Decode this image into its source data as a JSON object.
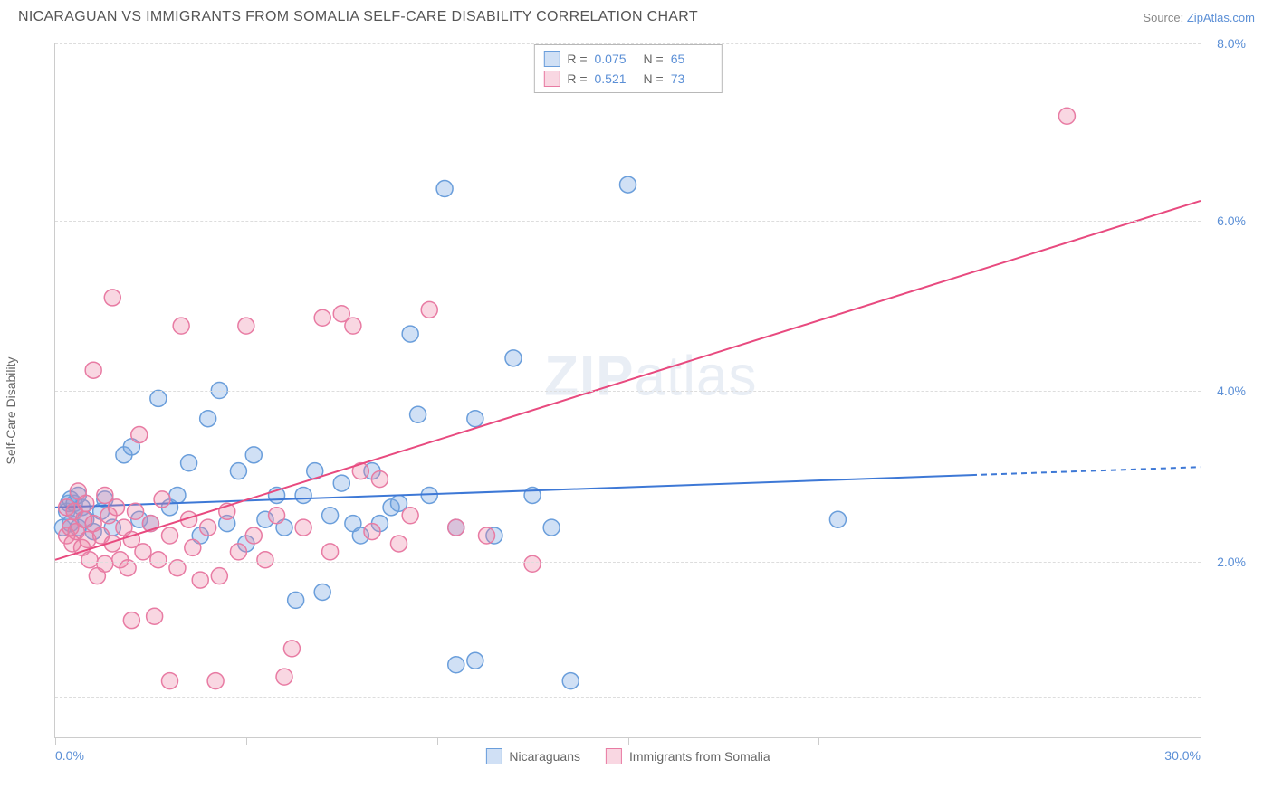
{
  "title": "NICARAGUAN VS IMMIGRANTS FROM SOMALIA SELF-CARE DISABILITY CORRELATION CHART",
  "source_label": "Source:",
  "source_link": "ZipAtlas.com",
  "y_axis_label": "Self-Care Disability",
  "watermark": "ZIPatlas",
  "chart": {
    "type": "scatter",
    "xlim": [
      0,
      30
    ],
    "ylim": [
      0,
      8.6
    ],
    "x_ticks": [
      0,
      5,
      10,
      15,
      20,
      25,
      30
    ],
    "x_tick_labels": {
      "0": "0.0%",
      "30": "30.0%"
    },
    "y_gridlines": [
      0.5,
      2.17,
      4.3,
      6.4,
      8.6
    ],
    "y_tick_labels": {
      "2.17": "2.0%",
      "4.3": "4.0%",
      "6.4": "6.0%",
      "8.6": "8.0%"
    },
    "background_color": "#ffffff",
    "grid_color": "#dddddd",
    "axis_color": "#cccccc",
    "tick_label_color": "#5b8fd6",
    "marker_radius": 9,
    "marker_stroke_width": 1.5,
    "line_width": 2,
    "series": [
      {
        "name": "Nicaraguans",
        "fill": "rgba(120,165,225,0.35)",
        "stroke": "#6a9edb",
        "line_color": "#3d78d6",
        "R": "0.075",
        "N": "65",
        "regression": {
          "x1": 0,
          "y1": 2.85,
          "x2": 24,
          "y2": 3.25,
          "dash_x2": 30,
          "dash_y2": 3.35
        },
        "points": [
          [
            0.2,
            2.6
          ],
          [
            0.3,
            2.8
          ],
          [
            0.35,
            2.9
          ],
          [
            0.4,
            2.65
          ],
          [
            0.4,
            2.95
          ],
          [
            0.5,
            2.8
          ],
          [
            0.5,
            2.9
          ],
          [
            0.6,
            2.6
          ],
          [
            0.6,
            3.0
          ],
          [
            0.7,
            2.85
          ],
          [
            0.8,
            2.7
          ],
          [
            1.0,
            2.55
          ],
          [
            1.2,
            2.8
          ],
          [
            1.3,
            2.95
          ],
          [
            1.5,
            2.6
          ],
          [
            1.8,
            3.5
          ],
          [
            2.0,
            3.6
          ],
          [
            2.2,
            2.7
          ],
          [
            2.5,
            2.65
          ],
          [
            2.7,
            4.2
          ],
          [
            3.0,
            2.85
          ],
          [
            3.2,
            3.0
          ],
          [
            3.5,
            3.4
          ],
          [
            3.8,
            2.5
          ],
          [
            4.0,
            3.95
          ],
          [
            4.3,
            4.3
          ],
          [
            4.5,
            2.65
          ],
          [
            4.8,
            3.3
          ],
          [
            5.0,
            2.4
          ],
          [
            5.2,
            3.5
          ],
          [
            5.5,
            2.7
          ],
          [
            5.8,
            3.0
          ],
          [
            6.0,
            2.6
          ],
          [
            6.3,
            1.7
          ],
          [
            6.5,
            3.0
          ],
          [
            6.8,
            3.3
          ],
          [
            7.0,
            1.8
          ],
          [
            7.2,
            2.75
          ],
          [
            7.5,
            3.15
          ],
          [
            7.8,
            2.65
          ],
          [
            8.0,
            2.5
          ],
          [
            8.3,
            3.3
          ],
          [
            8.5,
            2.65
          ],
          [
            8.8,
            2.85
          ],
          [
            9.0,
            2.9
          ],
          [
            9.3,
            5.0
          ],
          [
            9.5,
            4.0
          ],
          [
            9.8,
            3.0
          ],
          [
            10.2,
            6.8
          ],
          [
            10.5,
            2.6
          ],
          [
            10.5,
            0.9
          ],
          [
            11.0,
            3.95
          ],
          [
            11.0,
            0.95
          ],
          [
            11.5,
            2.5
          ],
          [
            12.0,
            4.7
          ],
          [
            12.5,
            3.0
          ],
          [
            13.0,
            2.6
          ],
          [
            13.5,
            0.7
          ],
          [
            15.0,
            6.85
          ],
          [
            20.5,
            2.7
          ]
        ]
      },
      {
        "name": "Immigrants from Somalia",
        "fill": "rgba(235,130,165,0.32)",
        "stroke": "#e87ba3",
        "line_color": "#e84a7f",
        "R": "0.521",
        "N": "73",
        "regression": {
          "x1": 0,
          "y1": 2.2,
          "x2": 30,
          "y2": 6.65
        },
        "points": [
          [
            0.3,
            2.5
          ],
          [
            0.3,
            2.85
          ],
          [
            0.4,
            2.6
          ],
          [
            0.45,
            2.4
          ],
          [
            0.5,
            2.8
          ],
          [
            0.55,
            2.55
          ],
          [
            0.6,
            3.05
          ],
          [
            0.7,
            2.35
          ],
          [
            0.75,
            2.7
          ],
          [
            0.8,
            2.9
          ],
          [
            0.85,
            2.45
          ],
          [
            0.9,
            2.2
          ],
          [
            1.0,
            2.65
          ],
          [
            1.0,
            4.55
          ],
          [
            1.1,
            2.0
          ],
          [
            1.2,
            2.5
          ],
          [
            1.3,
            3.0
          ],
          [
            1.3,
            2.15
          ],
          [
            1.4,
            2.75
          ],
          [
            1.5,
            2.4
          ],
          [
            1.5,
            5.45
          ],
          [
            1.6,
            2.85
          ],
          [
            1.7,
            2.2
          ],
          [
            1.8,
            2.6
          ],
          [
            1.9,
            2.1
          ],
          [
            2.0,
            2.45
          ],
          [
            2.0,
            1.45
          ],
          [
            2.1,
            2.8
          ],
          [
            2.2,
            3.75
          ],
          [
            2.3,
            2.3
          ],
          [
            2.5,
            2.65
          ],
          [
            2.6,
            1.5
          ],
          [
            2.7,
            2.2
          ],
          [
            2.8,
            2.95
          ],
          [
            3.0,
            2.5
          ],
          [
            3.0,
            0.7
          ],
          [
            3.2,
            2.1
          ],
          [
            3.3,
            5.1
          ],
          [
            3.5,
            2.7
          ],
          [
            3.6,
            2.35
          ],
          [
            3.8,
            1.95
          ],
          [
            4.0,
            2.6
          ],
          [
            4.2,
            0.7
          ],
          [
            4.3,
            2.0
          ],
          [
            4.5,
            2.8
          ],
          [
            4.8,
            2.3
          ],
          [
            5.0,
            5.1
          ],
          [
            5.2,
            2.5
          ],
          [
            5.5,
            2.2
          ],
          [
            5.8,
            2.75
          ],
          [
            6.0,
            0.75
          ],
          [
            6.2,
            1.1
          ],
          [
            6.5,
            2.6
          ],
          [
            7.0,
            5.2
          ],
          [
            7.2,
            2.3
          ],
          [
            7.5,
            5.25
          ],
          [
            7.8,
            5.1
          ],
          [
            8.0,
            3.3
          ],
          [
            8.3,
            2.55
          ],
          [
            8.5,
            3.2
          ],
          [
            9.0,
            2.4
          ],
          [
            9.3,
            2.75
          ],
          [
            9.8,
            5.3
          ],
          [
            10.5,
            2.6
          ],
          [
            11.3,
            2.5
          ],
          [
            12.5,
            2.15
          ],
          [
            26.5,
            7.7
          ]
        ]
      }
    ]
  },
  "legend": {
    "stats_rows": [
      {
        "swatch_fill": "rgba(120,165,225,0.35)",
        "swatch_stroke": "#6a9edb",
        "R": "0.075",
        "N": "65"
      },
      {
        "swatch_fill": "rgba(235,130,165,0.32)",
        "swatch_stroke": "#e87ba3",
        "R": "0.521",
        "N": "73"
      }
    ],
    "bottom": [
      {
        "swatch_fill": "rgba(120,165,225,0.35)",
        "swatch_stroke": "#6a9edb",
        "label": "Nicaraguans"
      },
      {
        "swatch_fill": "rgba(235,130,165,0.32)",
        "swatch_stroke": "#e87ba3",
        "label": "Immigrants from Somalia"
      }
    ]
  }
}
